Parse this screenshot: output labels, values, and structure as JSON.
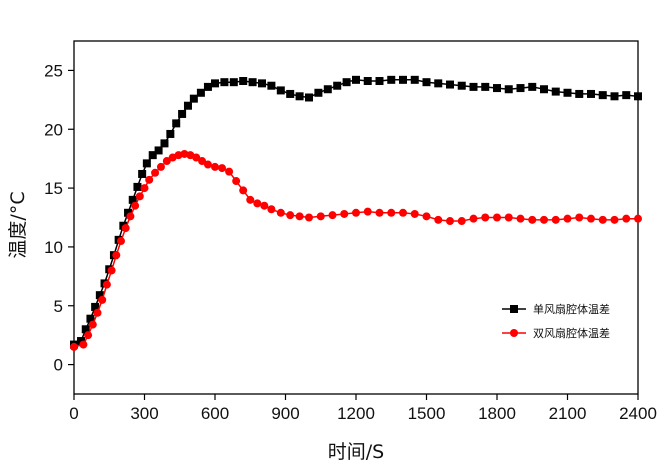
{
  "chart_data": {
    "type": "line",
    "xlabel": "时间/S",
    "ylabel": "温度/°C",
    "xlim": [
      0,
      2400
    ],
    "ylim": [
      -2.5,
      27.5
    ],
    "xticks": [
      0,
      300,
      600,
      900,
      1200,
      1500,
      1800,
      2100,
      2400
    ],
    "yticks": [
      0,
      5,
      10,
      15,
      20,
      25
    ],
    "grid": false,
    "legend_position": "center-right",
    "series": [
      {
        "name": "单风扇腔体温差",
        "color": "#000000",
        "marker": "square",
        "points": [
          [
            0,
            1.7
          ],
          [
            30,
            2.0
          ],
          [
            50,
            3.0
          ],
          [
            70,
            3.9
          ],
          [
            90,
            4.9
          ],
          [
            110,
            5.9
          ],
          [
            130,
            6.9
          ],
          [
            150,
            8.1
          ],
          [
            170,
            9.3
          ],
          [
            190,
            10.6
          ],
          [
            210,
            11.8
          ],
          [
            230,
            12.9
          ],
          [
            250,
            14.0
          ],
          [
            270,
            15.1
          ],
          [
            290,
            16.2
          ],
          [
            310,
            17.1
          ],
          [
            335,
            17.8
          ],
          [
            360,
            18.2
          ],
          [
            385,
            18.8
          ],
          [
            410,
            19.6
          ],
          [
            435,
            20.5
          ],
          [
            460,
            21.3
          ],
          [
            485,
            22.0
          ],
          [
            510,
            22.6
          ],
          [
            540,
            23.1
          ],
          [
            570,
            23.6
          ],
          [
            600,
            23.9
          ],
          [
            640,
            24.0
          ],
          [
            680,
            24.0
          ],
          [
            720,
            24.1
          ],
          [
            760,
            24.0
          ],
          [
            800,
            23.9
          ],
          [
            840,
            23.7
          ],
          [
            880,
            23.3
          ],
          [
            920,
            23.0
          ],
          [
            960,
            22.8
          ],
          [
            1000,
            22.7
          ],
          [
            1040,
            23.1
          ],
          [
            1080,
            23.4
          ],
          [
            1120,
            23.7
          ],
          [
            1160,
            24.0
          ],
          [
            1200,
            24.2
          ],
          [
            1250,
            24.1
          ],
          [
            1300,
            24.1
          ],
          [
            1350,
            24.2
          ],
          [
            1400,
            24.2
          ],
          [
            1450,
            24.2
          ],
          [
            1500,
            24.0
          ],
          [
            1550,
            23.9
          ],
          [
            1600,
            23.8
          ],
          [
            1650,
            23.7
          ],
          [
            1700,
            23.6
          ],
          [
            1750,
            23.6
          ],
          [
            1800,
            23.5
          ],
          [
            1850,
            23.4
          ],
          [
            1900,
            23.5
          ],
          [
            1950,
            23.6
          ],
          [
            2000,
            23.4
          ],
          [
            2050,
            23.2
          ],
          [
            2100,
            23.1
          ],
          [
            2150,
            23.0
          ],
          [
            2200,
            23.0
          ],
          [
            2250,
            22.9
          ],
          [
            2300,
            22.8
          ],
          [
            2350,
            22.9
          ],
          [
            2400,
            22.8
          ]
        ]
      },
      {
        "name": "双风扇腔体温差",
        "color": "#ff0000",
        "marker": "circle",
        "points": [
          [
            0,
            1.5
          ],
          [
            40,
            1.7
          ],
          [
            60,
            2.5
          ],
          [
            80,
            3.4
          ],
          [
            100,
            4.4
          ],
          [
            120,
            5.5
          ],
          [
            140,
            6.8
          ],
          [
            160,
            8.0
          ],
          [
            180,
            9.3
          ],
          [
            200,
            10.5
          ],
          [
            220,
            11.6
          ],
          [
            240,
            12.6
          ],
          [
            260,
            13.5
          ],
          [
            280,
            14.3
          ],
          [
            300,
            15.0
          ],
          [
            320,
            15.7
          ],
          [
            345,
            16.3
          ],
          [
            370,
            16.8
          ],
          [
            395,
            17.3
          ],
          [
            420,
            17.6
          ],
          [
            445,
            17.8
          ],
          [
            470,
            17.9
          ],
          [
            495,
            17.8
          ],
          [
            520,
            17.6
          ],
          [
            545,
            17.3
          ],
          [
            570,
            17.0
          ],
          [
            600,
            16.8
          ],
          [
            630,
            16.7
          ],
          [
            660,
            16.4
          ],
          [
            690,
            15.6
          ],
          [
            720,
            14.8
          ],
          [
            750,
            14.0
          ],
          [
            780,
            13.7
          ],
          [
            810,
            13.5
          ],
          [
            840,
            13.2
          ],
          [
            880,
            12.9
          ],
          [
            920,
            12.7
          ],
          [
            960,
            12.6
          ],
          [
            1000,
            12.5
          ],
          [
            1050,
            12.6
          ],
          [
            1100,
            12.7
          ],
          [
            1150,
            12.8
          ],
          [
            1200,
            12.9
          ],
          [
            1250,
            13.0
          ],
          [
            1300,
            12.9
          ],
          [
            1350,
            12.9
          ],
          [
            1400,
            12.9
          ],
          [
            1450,
            12.8
          ],
          [
            1500,
            12.6
          ],
          [
            1550,
            12.3
          ],
          [
            1600,
            12.2
          ],
          [
            1650,
            12.2
          ],
          [
            1700,
            12.4
          ],
          [
            1750,
            12.5
          ],
          [
            1800,
            12.5
          ],
          [
            1850,
            12.5
          ],
          [
            1900,
            12.4
          ],
          [
            1950,
            12.3
          ],
          [
            2000,
            12.3
          ],
          [
            2050,
            12.3
          ],
          [
            2100,
            12.4
          ],
          [
            2150,
            12.5
          ],
          [
            2200,
            12.4
          ],
          [
            2250,
            12.3
          ],
          [
            2300,
            12.3
          ],
          [
            2350,
            12.4
          ],
          [
            2400,
            12.4
          ]
        ]
      }
    ]
  }
}
